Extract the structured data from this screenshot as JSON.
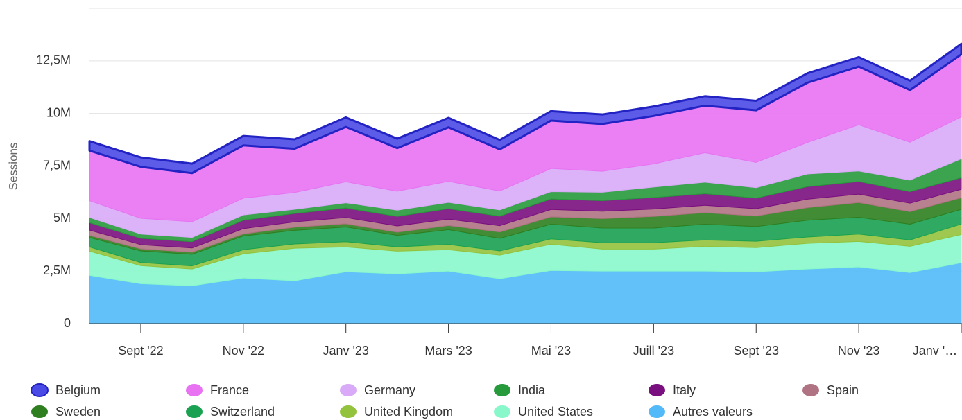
{
  "chart_data": {
    "type": "stacked_area",
    "y_label": "Sessions",
    "categories": [
      null,
      "Sept '22",
      null,
      "Nov '22",
      null,
      "Janv '23",
      null,
      "Mars '23",
      null,
      "Mai '23",
      null,
      "Juill '23",
      null,
      "Sept '23",
      null,
      "Nov '23",
      null,
      "Janv '…"
    ],
    "ylim": [
      0,
      15000000
    ],
    "yticks": [
      0,
      {
        "value": 2500000,
        "label": "2,5M"
      },
      {
        "value": 5000000,
        "label": "5M"
      },
      {
        "value": 7500000,
        "label": "7,5M"
      },
      {
        "value": 10000000,
        "label": "10M"
      },
      {
        "value": 12500000,
        "label": "12,5M"
      }
    ],
    "grid": true,
    "legend": "bottom",
    "series": [
      {
        "name": "Belgium",
        "color": "#4a4ae6",
        "values": [
          450000,
          450000,
          450000,
          450000,
          450000,
          450000,
          450000,
          450000,
          450000,
          450000,
          450000,
          450000,
          450000,
          450000,
          450000,
          450000,
          450000,
          500000
        ]
      },
      {
        "name": "France",
        "color": "#e872f2",
        "values": [
          2380000,
          2450000,
          2310000,
          2510000,
          2080000,
          2610000,
          2050000,
          2570000,
          1980000,
          2280000,
          2250000,
          2280000,
          2240000,
          2480000,
          2840000,
          2770000,
          2480000,
          2970000
        ]
      },
      {
        "name": "Germany",
        "color": "#d8aaf7",
        "values": [
          800000,
          750000,
          750000,
          800000,
          800000,
          1000000,
          900000,
          1000000,
          900000,
          1100000,
          1000000,
          1100000,
          1400000,
          1200000,
          1500000,
          2200000,
          1800000,
          2000000
        ]
      },
      {
        "name": "India",
        "color": "#279a3c",
        "values": [
          250000,
          200000,
          200000,
          250000,
          200000,
          250000,
          300000,
          300000,
          300000,
          350000,
          400000,
          500000,
          550000,
          500000,
          600000,
          500000,
          550000,
          900000
        ]
      },
      {
        "name": "Italy",
        "color": "#7a0f80",
        "values": [
          350000,
          300000,
          300000,
          400000,
          400000,
          450000,
          450000,
          500000,
          450000,
          500000,
          500000,
          550000,
          550000,
          500000,
          600000,
          600000,
          550000,
          550000
        ]
      },
      {
        "name": "Spain",
        "color": "#b07383",
        "values": [
          250000,
          200000,
          200000,
          250000,
          250000,
          300000,
          300000,
          300000,
          300000,
          350000,
          350000,
          350000,
          350000,
          350000,
          400000,
          400000,
          400000,
          400000
        ]
      },
      {
        "name": "Sweden",
        "color": "#2f7f20",
        "values": [
          100000,
          100000,
          100000,
          100000,
          150000,
          150000,
          150000,
          200000,
          300000,
          350000,
          450000,
          550000,
          550000,
          500000,
          600000,
          700000,
          600000,
          550000
        ]
      },
      {
        "name": "Switzerland",
        "color": "#1aa152",
        "values": [
          450000,
          550000,
          550000,
          650000,
          650000,
          700000,
          550000,
          700000,
          600000,
          700000,
          700000,
          700000,
          750000,
          700000,
          800000,
          800000,
          750000,
          700000
        ]
      },
      {
        "name": "United Kingdom",
        "color": "#93c23c",
        "values": [
          200000,
          150000,
          150000,
          200000,
          200000,
          250000,
          200000,
          250000,
          200000,
          250000,
          300000,
          300000,
          300000,
          300000,
          300000,
          350000,
          300000,
          500000
        ]
      },
      {
        "name": "United States",
        "color": "#88f8cb",
        "values": [
          1150000,
          860000,
          800000,
          1150000,
          1550000,
          1180000,
          1080000,
          1020000,
          1120000,
          1250000,
          1050000,
          1050000,
          1180000,
          1150000,
          1220000,
          1210000,
          1250000,
          1340000
        ]
      },
      {
        "name": "Autres valeurs",
        "color": "#52baf8",
        "values": [
          2300000,
          1900000,
          1800000,
          2170000,
          2040000,
          2470000,
          2370000,
          2500000,
          2140000,
          2530000,
          2500000,
          2500000,
          2500000,
          2470000,
          2600000,
          2700000,
          2430000,
          2900000
        ]
      }
    ]
  }
}
